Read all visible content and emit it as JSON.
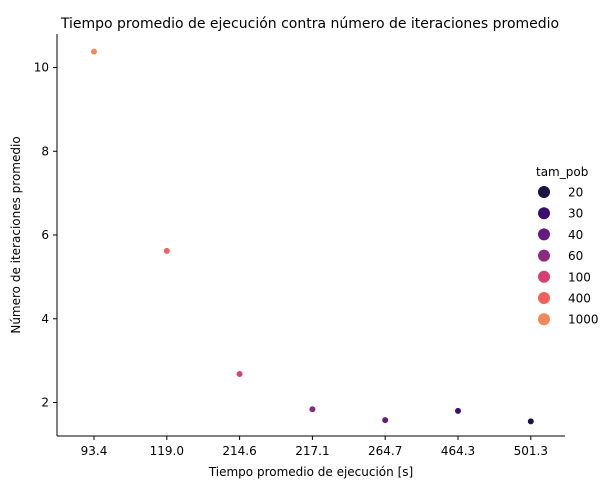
{
  "chart_data": {
    "type": "scatter",
    "title": "Tiempo promedio de ejecución contra número de iteraciones promedio",
    "xlabel": "Tiempo promedio de ejecución [s]",
    "ylabel": "Número de iteraciones promedio",
    "x_scale": "categorical",
    "categories": [
      "93.4",
      "119.0",
      "214.6",
      "217.1",
      "264.7",
      "464.3",
      "501.3"
    ],
    "y_ticks": [
      2,
      4,
      6,
      8,
      10
    ],
    "ylim": [
      1.2,
      10.8
    ],
    "grid": false,
    "points": [
      {
        "x": "93.4",
        "y": 10.38,
        "tam_pob": "1000"
      },
      {
        "x": "119.0",
        "y": 5.62,
        "tam_pob": "400"
      },
      {
        "x": "214.6",
        "y": 2.68,
        "tam_pob": "100"
      },
      {
        "x": "217.1",
        "y": 1.84,
        "tam_pob": "60"
      },
      {
        "x": "264.7",
        "y": 1.58,
        "tam_pob": "40"
      },
      {
        "x": "464.3",
        "y": 1.8,
        "tam_pob": "30"
      },
      {
        "x": "501.3",
        "y": 1.55,
        "tam_pob": "20"
      }
    ],
    "legend": {
      "title": "tam_pob",
      "placement": "right",
      "entries": [
        {
          "label": "20",
          "color": "#1d1147"
        },
        {
          "label": "30",
          "color": "#3b0f70"
        },
        {
          "label": "40",
          "color": "#641a80"
        },
        {
          "label": "60",
          "color": "#8c2981"
        },
        {
          "label": "100",
          "color": "#d3436e"
        },
        {
          "label": "400",
          "color": "#f1605d"
        },
        {
          "label": "1000",
          "color": "#f4895d"
        }
      ]
    }
  }
}
